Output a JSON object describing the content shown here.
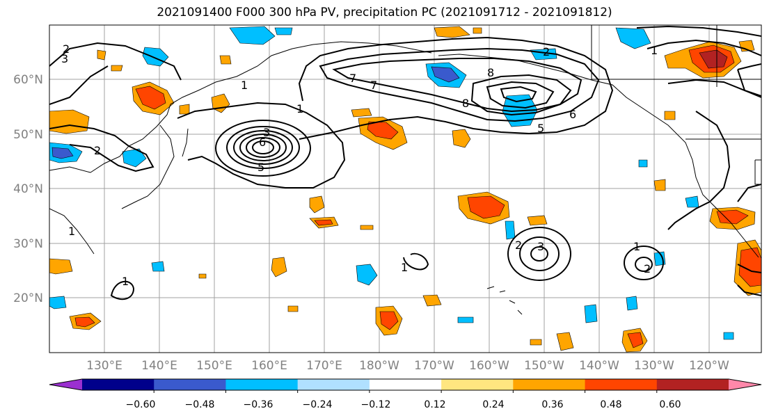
{
  "title": "2021091400 F000 300 hPa PV, precipitation PC (2021091712 - 2021091812)",
  "map": {
    "lon_labels": [
      "130°E",
      "140°E",
      "150°E",
      "160°E",
      "170°E",
      "180°W",
      "170°W",
      "160°W",
      "150°W",
      "140°W",
      "130°W",
      "120°W"
    ],
    "lat_labels": [
      "60°N",
      "50°N",
      "40°N",
      "30°N",
      "20°N"
    ],
    "pv_contour_labels": [
      "1",
      "2",
      "3",
      "5",
      "6",
      "7",
      "8",
      "1",
      "2",
      "3",
      "1",
      "2",
      "5",
      "6",
      "7",
      "8",
      "2",
      "3",
      "1",
      "2",
      "1",
      "1",
      "1"
    ]
  },
  "colorbar": {
    "tick_labels": [
      "−0.60",
      "−0.48",
      "−0.36",
      "−0.24",
      "−0.12",
      "0.12",
      "0.24",
      "0.36",
      "0.48",
      "0.60"
    ],
    "colors": [
      "#9b30d0",
      "#00008b",
      "#3a5acd",
      "#00bfff",
      "#b0e0ff",
      "#ffffff",
      "#ffe680",
      "#ffa500",
      "#ff4500",
      "#b22222",
      "#ff88aa"
    ]
  },
  "colors": {
    "neg_strong": "#3a5acd",
    "neg_mid": "#00bfff",
    "neg_weak": "#b0e0ff",
    "pos_weak": "#ffe680",
    "pos_mid": "#ffa500",
    "pos_strong": "#ff4500",
    "pos_max": "#b22222"
  }
}
